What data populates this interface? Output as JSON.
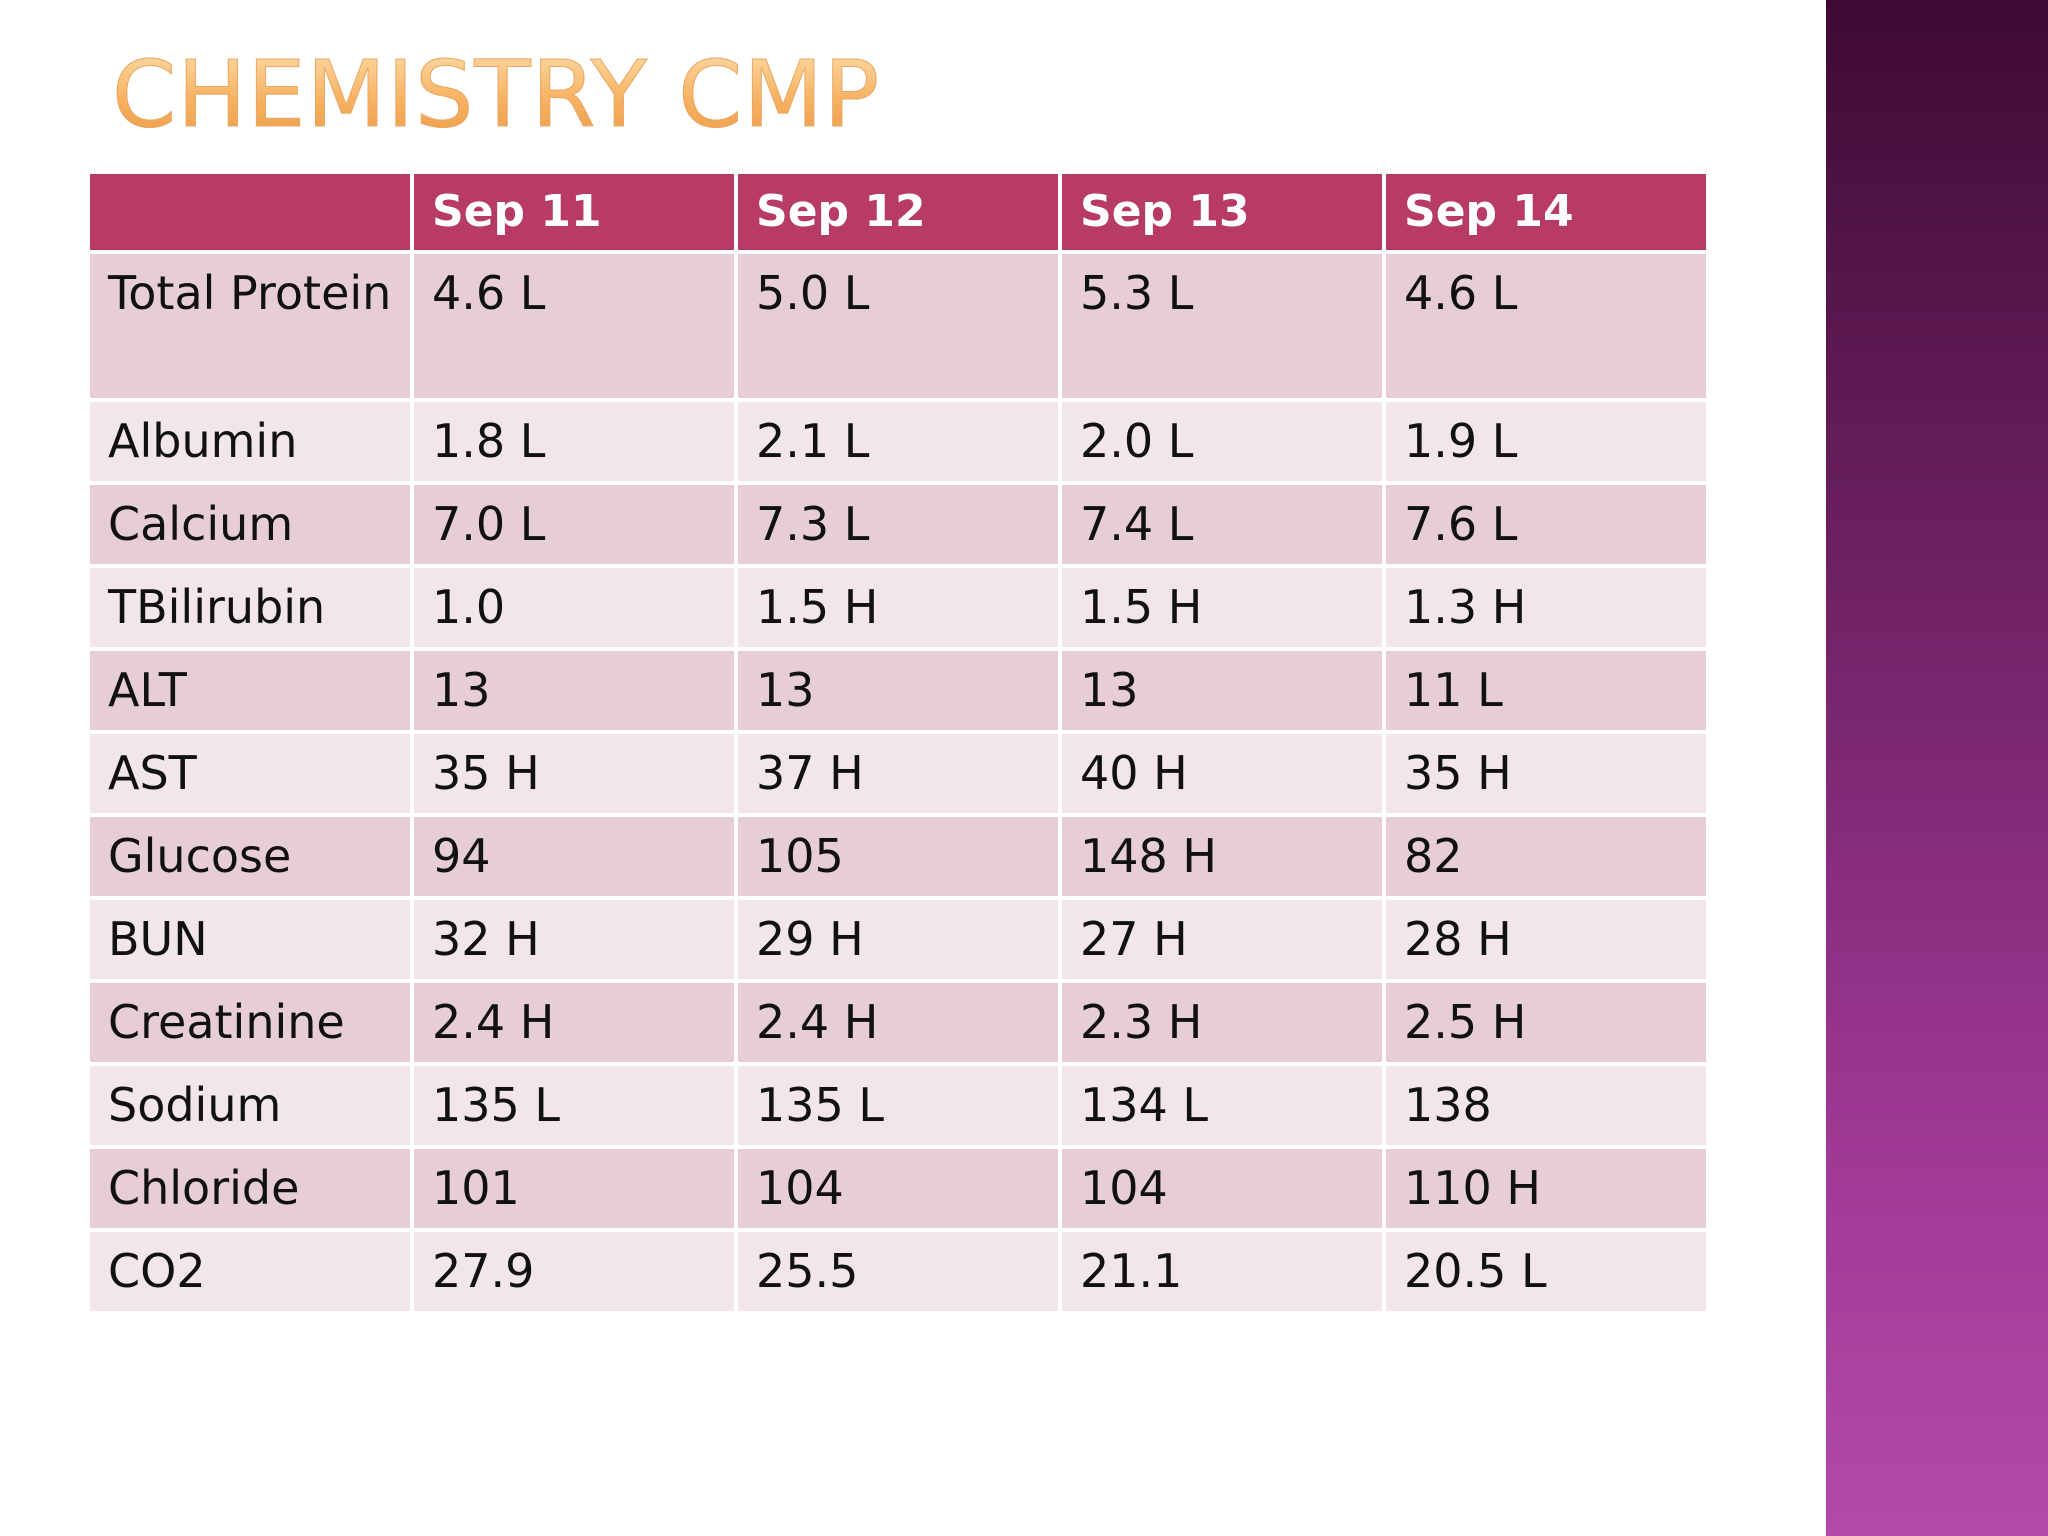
{
  "title": "Chemistry CMP",
  "accent_colors": {
    "header_fill": "#b73b66",
    "row_dark": "#e6cdd7",
    "row_light": "#f2e6ea",
    "title_gradient": [
      "#fde2b0",
      "#e89a45"
    ],
    "side_band_gradient": [
      "#3e0a33",
      "#b44aa8"
    ]
  },
  "table": {
    "corner": "",
    "columns": [
      "Sep 11",
      "Sep 12",
      "Sep 13",
      "Sep 14"
    ],
    "rows": [
      {
        "test": "Total Protein",
        "values": [
          "4.6 L",
          "5.0 L",
          "5.3 L",
          "4.6 L"
        ]
      },
      {
        "test": "Albumin",
        "values": [
          "1.8 L",
          "2.1 L",
          "2.0 L",
          "1.9 L"
        ]
      },
      {
        "test": "Calcium",
        "values": [
          "7.0 L",
          "7.3 L",
          "7.4 L",
          "7.6 L"
        ]
      },
      {
        "test": "TBilirubin",
        "values": [
          "1.0",
          "1.5 H",
          "1.5 H",
          "1.3 H"
        ]
      },
      {
        "test": "ALT",
        "values": [
          "13",
          "13",
          "13",
          "11 L"
        ]
      },
      {
        "test": "AST",
        "values": [
          "35 H",
          "37 H",
          "40 H",
          "35 H"
        ]
      },
      {
        "test": "Glucose",
        "values": [
          "94",
          "105",
          "148 H",
          "82"
        ]
      },
      {
        "test": "BUN",
        "values": [
          "32 H",
          "29 H",
          "27 H",
          "28 H"
        ]
      },
      {
        "test": "Creatinine",
        "values": [
          "2.4 H",
          "2.4 H",
          "2.3 H",
          "2.5 H"
        ]
      },
      {
        "test": "Sodium",
        "values": [
          "135 L",
          "135 L",
          "134 L",
          "138"
        ]
      },
      {
        "test": "Chloride",
        "values": [
          "101",
          "104",
          "104",
          "110 H"
        ]
      },
      {
        "test": "CO2",
        "values": [
          "27.9",
          "25.5",
          "21.1",
          "20.5 L"
        ]
      }
    ]
  }
}
